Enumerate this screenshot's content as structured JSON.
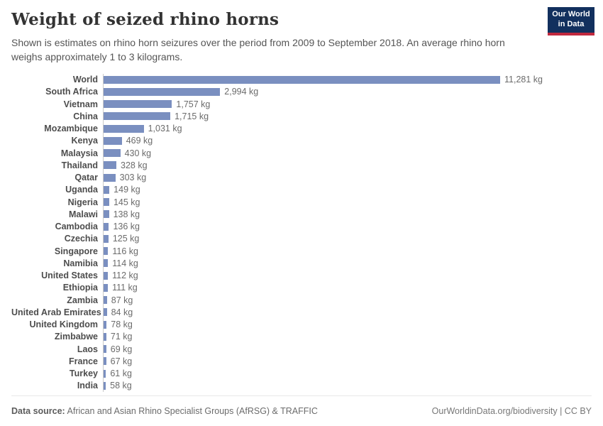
{
  "header": {
    "title": "Weight of seized rhino horns",
    "subtitle": "Shown is estimates on rhino horn seizures over the period from 2009 to September 2018. An average rhino horn weighs approximately 1 to 3 kilograms.",
    "logo": {
      "line1": "Our World",
      "line2": "in Data"
    }
  },
  "chart_data": {
    "type": "bar",
    "orientation": "horizontal",
    "title": "Weight of seized rhino horns",
    "xlabel": "",
    "ylabel": "",
    "xlim": [
      0,
      11281
    ],
    "grid": false,
    "legend": "none",
    "unit": "kg",
    "bar_color": "#7a8fc0",
    "categories": [
      "World",
      "South Africa",
      "Vietnam",
      "China",
      "Mozambique",
      "Kenya",
      "Malaysia",
      "Thailand",
      "Qatar",
      "Uganda",
      "Nigeria",
      "Malawi",
      "Cambodia",
      "Czechia",
      "Singapore",
      "Namibia",
      "United States",
      "Ethiopia",
      "Zambia",
      "United Arab Emirates",
      "United Kingdom",
      "Zimbabwe",
      "Laos",
      "France",
      "Turkey",
      "India"
    ],
    "values": [
      11281,
      2994,
      1757,
      1715,
      1031,
      469,
      430,
      328,
      303,
      149,
      145,
      138,
      136,
      125,
      116,
      114,
      112,
      111,
      87,
      84,
      78,
      71,
      69,
      67,
      61,
      58
    ],
    "value_labels": [
      "11,281 kg",
      "2,994 kg",
      "1,757 kg",
      "1,715 kg",
      "1,031 kg",
      "469 kg",
      "430 kg",
      "328 kg",
      "303 kg",
      "149 kg",
      "145 kg",
      "138 kg",
      "136 kg",
      "125 kg",
      "116 kg",
      "114 kg",
      "112 kg",
      "111 kg",
      "87 kg",
      "84 kg",
      "78 kg",
      "71 kg",
      "69 kg",
      "67 kg",
      "61 kg",
      "58 kg"
    ]
  },
  "footer": {
    "datasource_label": "Data source:",
    "datasource_text": "African and Asian Rhino Specialist Groups (AfRSG) & TRAFFIC",
    "link": "OurWorldinData.org/biodiversity",
    "separator": "|",
    "license": "CC BY"
  }
}
